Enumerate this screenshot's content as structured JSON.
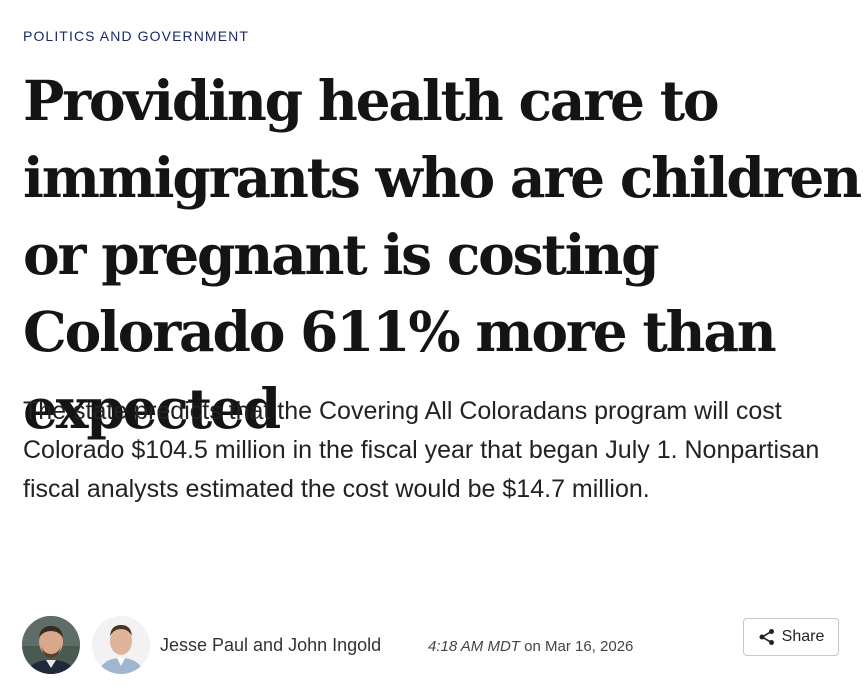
{
  "article": {
    "section": "POLITICS AND GOVERNMENT",
    "headline": "Providing health care to immigrants who are children or pregnant is costing Colorado 611% more than expected",
    "dek": "The state predicts that the Covering All Coloradans program will cost Colorado $104.5 million in the fiscal year that began July 1. Nonpartisan fiscal analysts estimated the cost would be $14.7 million."
  },
  "byline": {
    "authors": "Jesse Paul and John Ingold",
    "time": "4:18 AM MDT",
    "date_prefix": "on",
    "date": "Mar 16, 2026"
  },
  "share": {
    "label": "Share",
    "icon": "share-icon"
  },
  "colors": {
    "section_label": "#1b2a6b",
    "headline": "#141414",
    "body_text": "#222222"
  }
}
